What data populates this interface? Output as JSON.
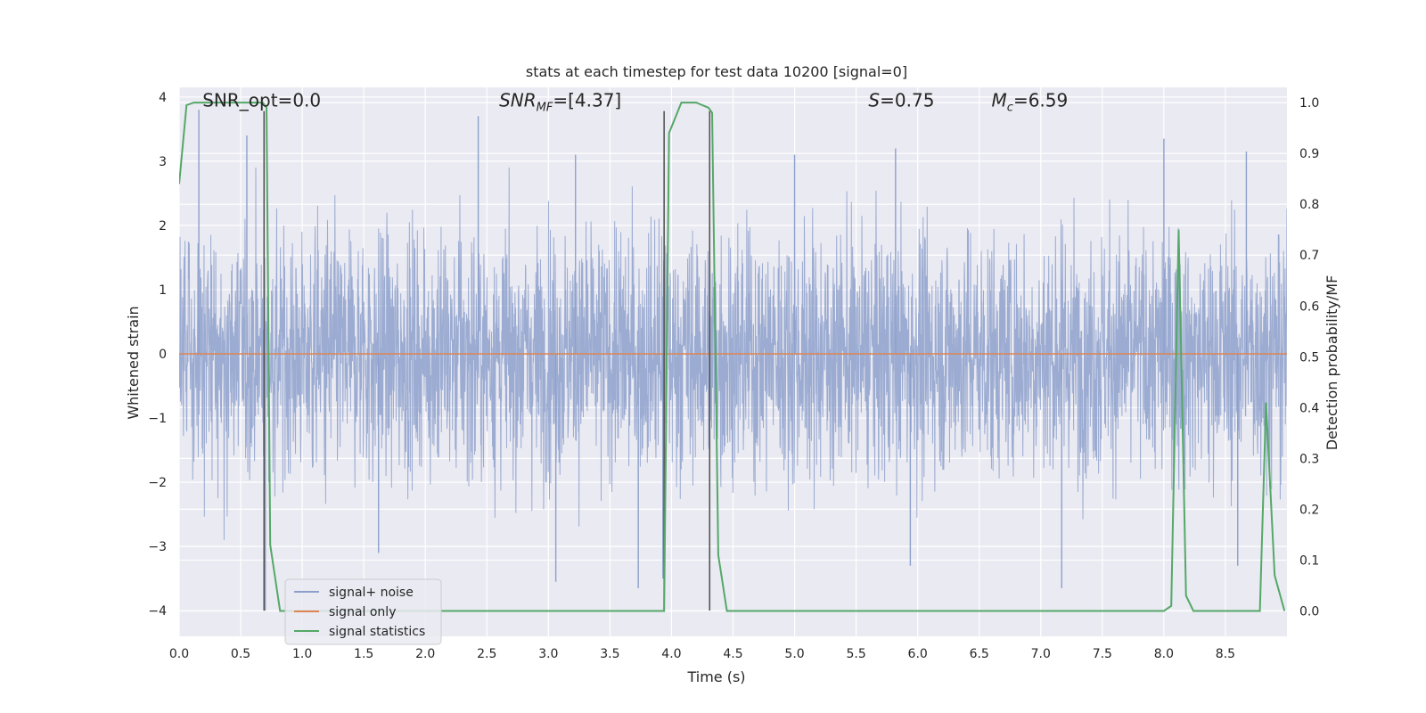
{
  "chart_data": {
    "type": "line",
    "title": "stats at each timestep for test data 10200 [signal=0]",
    "xlabel": "Time (s)",
    "ylabel": "Whitened strain",
    "ylabel_right": "Detection probability/MF",
    "xlim": [
      0.0,
      9.0
    ],
    "ylim": [
      -4.4,
      4.15
    ],
    "ylim_right": [
      -0.05,
      1.03
    ],
    "xticks": [
      0.0,
      0.5,
      1.0,
      1.5,
      2.0,
      2.5,
      3.0,
      3.5,
      4.0,
      4.5,
      5.0,
      5.5,
      6.0,
      6.5,
      7.0,
      7.5,
      8.0,
      8.5
    ],
    "xtick_labels": [
      "0.0",
      "0.5",
      "1.0",
      "1.5",
      "2.0",
      "2.5",
      "3.0",
      "3.5",
      "4.0",
      "4.5",
      "5.0",
      "5.5",
      "6.0",
      "6.5",
      "7.0",
      "7.5",
      "8.0",
      "8.5"
    ],
    "yticks": [
      -4,
      -3,
      -2,
      -1,
      0,
      1,
      2,
      3,
      4
    ],
    "ytick_labels": [
      "−4",
      "−3",
      "−2",
      "−1",
      "0",
      "1",
      "2",
      "3",
      "4"
    ],
    "yticks_right": [
      0.0,
      0.1,
      0.2,
      0.3,
      0.4,
      0.5,
      0.6,
      0.7,
      0.8,
      0.9,
      1.0
    ],
    "ytick_labels_right": [
      "0.0",
      "0.1",
      "0.2",
      "0.3",
      "0.4",
      "0.5",
      "0.6",
      "0.7",
      "0.8",
      "0.9",
      "1.0"
    ],
    "grid": true,
    "legend_position": "lower-left",
    "series": [
      {
        "name": "signal+ noise",
        "axis": "left",
        "color": "#8da0cb",
        "kind": "noise",
        "typical_range": [
          -1.7,
          1.7
        ],
        "peaks": [
          {
            "x": 0.16,
            "y": 3.8
          },
          {
            "x": 0.55,
            "y": 3.4
          },
          {
            "x": 2.43,
            "y": 3.7
          },
          {
            "x": 3.22,
            "y": 3.1
          },
          {
            "x": 5.0,
            "y": 3.1
          },
          {
            "x": 5.82,
            "y": 3.2
          },
          {
            "x": 8.0,
            "y": 3.35
          },
          {
            "x": 8.67,
            "y": 3.15
          },
          {
            "x": 0.7,
            "y": -4.0
          },
          {
            "x": 1.62,
            "y": -3.1
          },
          {
            "x": 3.06,
            "y": -3.55
          },
          {
            "x": 3.73,
            "y": -3.65
          },
          {
            "x": 3.93,
            "y": -3.5
          },
          {
            "x": 5.94,
            "y": -3.3
          },
          {
            "x": 7.17,
            "y": -3.65
          },
          {
            "x": 8.6,
            "y": -3.3
          }
        ]
      },
      {
        "name": "signal only",
        "axis": "left",
        "color": "#dd8452",
        "x": [
          0.0,
          9.0
        ],
        "y": [
          0.0,
          0.0
        ]
      },
      {
        "name": "signal statistics",
        "axis": "right",
        "color": "#55a868",
        "x": [
          0.0,
          0.06,
          0.12,
          0.2,
          0.3,
          0.4,
          0.5,
          0.6,
          0.68,
          0.71,
          0.74,
          0.82,
          1.0,
          2.0,
          3.0,
          3.94,
          3.98,
          4.03,
          4.08,
          4.2,
          4.3,
          4.33,
          4.38,
          4.45,
          5.0,
          6.0,
          7.0,
          8.0,
          8.06,
          8.12,
          8.18,
          8.24,
          8.3,
          8.72,
          8.78,
          8.83,
          8.9,
          8.98
        ],
        "y": [
          0.84,
          0.995,
          1.0,
          1.0,
          1.0,
          1.0,
          1.0,
          1.0,
          1.0,
          0.99,
          0.13,
          0.0,
          0.0,
          0.0,
          0.0,
          0.0,
          0.94,
          0.97,
          1.0,
          1.0,
          0.99,
          0.98,
          0.11,
          0.0,
          0.0,
          0.0,
          0.0,
          0.0,
          0.01,
          0.75,
          0.03,
          0.0,
          0.0,
          0.0,
          0.0,
          0.41,
          0.07,
          0.0
        ]
      }
    ],
    "vertical_markers": {
      "color": "#555555",
      "lines": [
        {
          "x": 0.69,
          "y": [
            -4.0,
            3.78
          ]
        },
        {
          "x": 3.94,
          "y": [
            -4.0,
            3.78
          ]
        },
        {
          "x": 4.31,
          "y": [
            -4.0,
            3.78
          ]
        }
      ]
    },
    "annotations": [
      {
        "text": "SNR_opt=0.0",
        "x": 0.19,
        "y": 3.85,
        "style": "plain"
      },
      {
        "text": "SNR_MF=[4.37]",
        "base": "SNR",
        "sub": "MF",
        "tail": "=[4.37]",
        "x": 2.6,
        "y": 3.85,
        "style": "sub"
      },
      {
        "text": "S=0.75",
        "base": "S",
        "sub": "",
        "tail": "=0.75",
        "x": 5.6,
        "y": 3.85,
        "style": "sub"
      },
      {
        "text": "M_c=6.59",
        "base": "M",
        "sub": "c",
        "tail": "=6.59",
        "x": 6.6,
        "y": 3.85,
        "style": "sub"
      }
    ]
  }
}
